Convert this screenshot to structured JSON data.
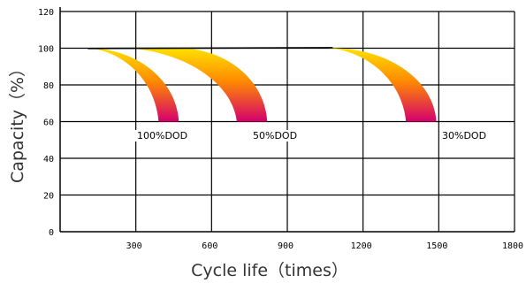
{
  "chart_data": {
    "type": "area",
    "title": "",
    "xlabel": "Cycle life（times）",
    "ylabel": "Capacity（%）",
    "xlim": [
      0,
      1800
    ],
    "ylim": [
      0,
      120
    ],
    "x_ticks": [
      "300",
      "600",
      "900",
      "1200",
      "1500",
      "1800"
    ],
    "y_ticks": [
      "0",
      "20",
      "40",
      "60",
      "80",
      "100",
      "120"
    ],
    "grid": true,
    "colors": {
      "band_top": "#ffe000",
      "band_mid": "#ff8a00",
      "band_bottom": "#d4006e",
      "line": "#000000"
    },
    "series": [
      {
        "name": "100% DOD",
        "start_x": 110,
        "plateau_end_x": 110,
        "inner_end_x": 390,
        "outer_end_x": 470,
        "end_y": 60
      },
      {
        "name": "50% DOD",
        "start_x": 260,
        "plateau_end_x": 470,
        "inner_end_x": 700,
        "outer_end_x": 820,
        "end_y": 60
      },
      {
        "name": "30% DOD",
        "start_x": 1060,
        "plateau_end_x": 1080,
        "inner_end_x": 1370,
        "outer_end_x": 1490,
        "end_y": 60
      }
    ],
    "baseline": {
      "y": 100,
      "x_from": 110,
      "x_to": 1080
    },
    "annotations": [
      "100%DOD",
      "50%DOD",
      "30%DOD"
    ]
  }
}
